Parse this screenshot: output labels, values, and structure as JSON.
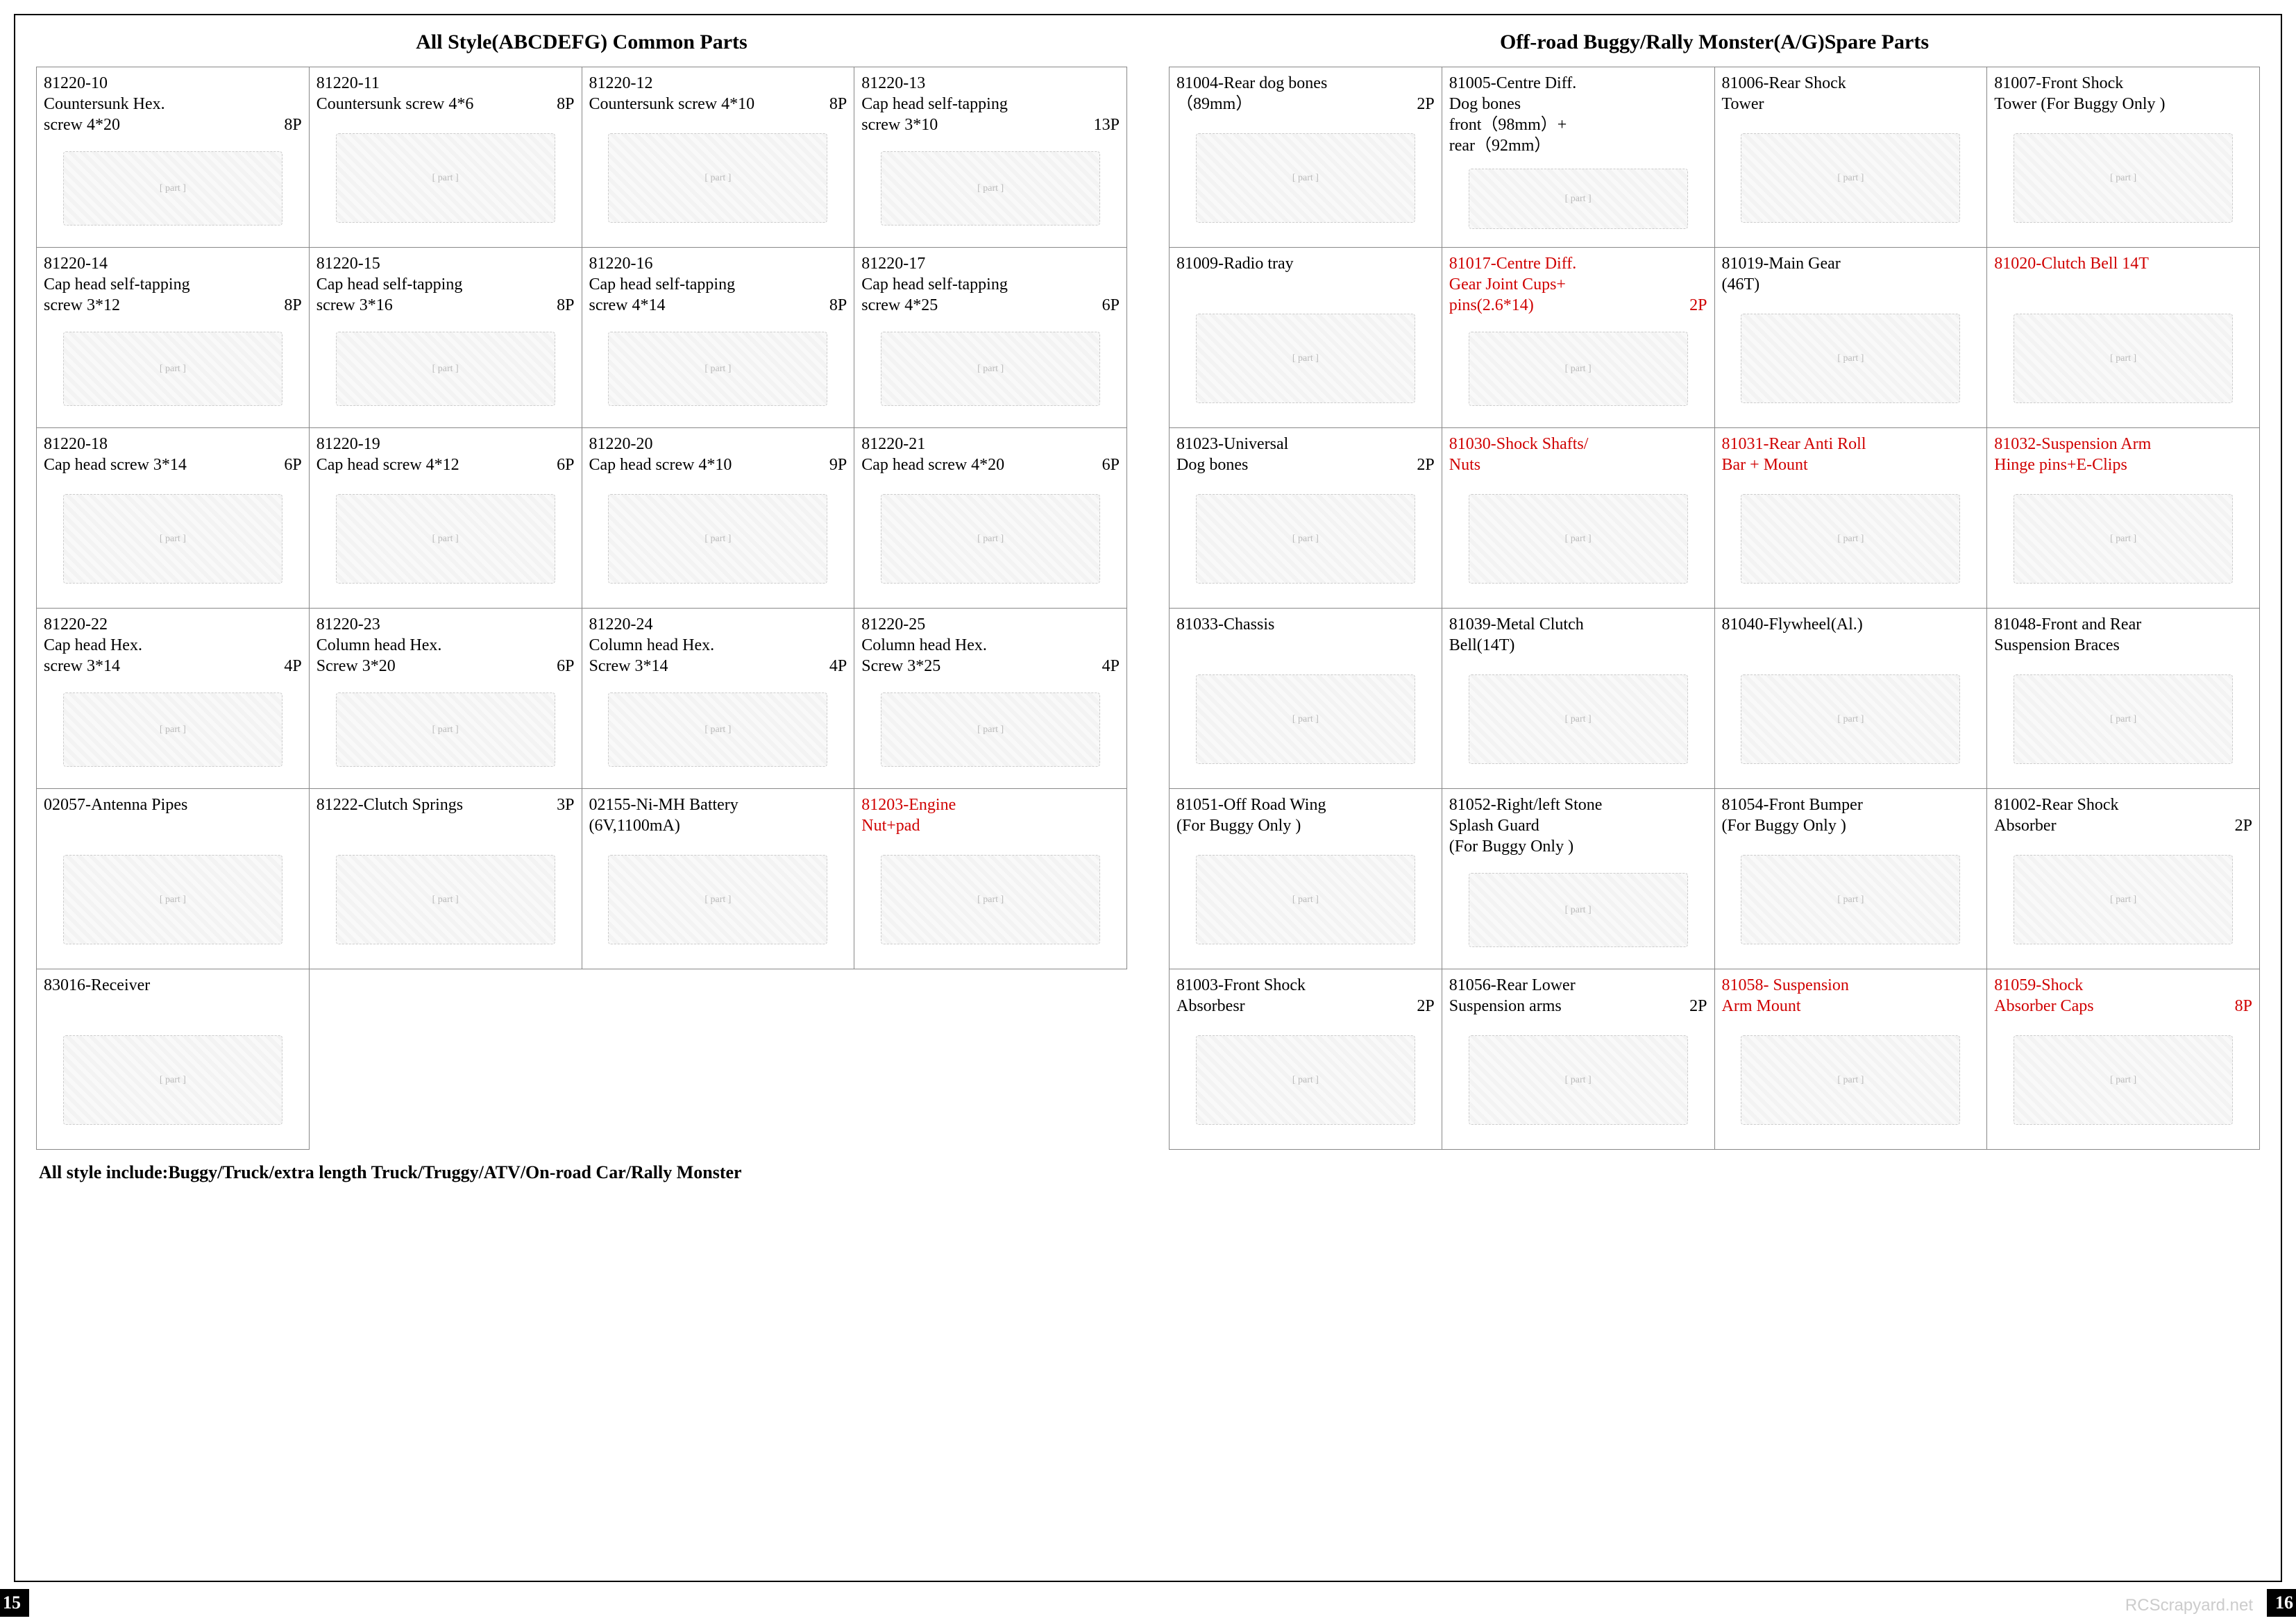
{
  "left": {
    "title": "All Style(ABCDEFG)  Common Parts",
    "footer": "All style include:Buggy/Truck/extra length Truck/Truggy/ATV/On-road Car/Rally Monster",
    "pagenum": "15",
    "cells": [
      {
        "l1": "81220-10",
        "l2": "Countersunk Hex.",
        "l3": "screw 4*20",
        "qty": "8P"
      },
      {
        "l1": "81220-11",
        "l2": "Countersunk screw 4*6",
        "qty": "8P"
      },
      {
        "l1": "81220-12",
        "l2": "Countersunk screw 4*10",
        "qty": "8P"
      },
      {
        "l1": "81220-13",
        "l2": "Cap head self-tapping",
        "l3": "screw 3*10",
        "qty": "13P"
      },
      {
        "l1": "81220-14",
        "l2": "Cap head self-tapping",
        "l3": "screw  3*12",
        "qty": "8P"
      },
      {
        "l1": "81220-15",
        "l2": "Cap head self-tapping",
        "l3": "screw  3*16",
        "qty": "8P"
      },
      {
        "l1": "81220-16",
        "l2": "Cap head self-tapping",
        "l3": "screw 4*14",
        "qty": "8P"
      },
      {
        "l1": "81220-17",
        "l2": "Cap head self-tapping",
        "l3": "screw 4*25",
        "qty": "6P"
      },
      {
        "l1": "81220-18",
        "l2": "Cap head screw 3*14",
        "qty": "6P"
      },
      {
        "l1": "81220-19",
        "l2": "Cap head screw 4*12",
        "qty": "6P"
      },
      {
        "l1": "81220-20",
        "l2": "Cap head screw 4*10",
        "qty": "9P"
      },
      {
        "l1": "81220-21",
        "l2": "Cap head screw 4*20",
        "qty": "6P"
      },
      {
        "l1": "81220-22",
        "l2": "Cap head Hex.",
        "l3": "screw 3*14",
        "qty": "4P"
      },
      {
        "l1": "81220-23",
        "l2": "Column head Hex.",
        "l3": "Screw 3*20",
        "qty": "6P"
      },
      {
        "l1": "81220-24",
        "l2": "Column head Hex.",
        "l3": "Screw 3*14",
        "qty": "4P"
      },
      {
        "l1": "81220-25",
        "l2": "Column head Hex.",
        "l3": "Screw 3*25",
        "qty": "4P"
      },
      {
        "l1": "02057-Antenna Pipes"
      },
      {
        "l1": "81222-Clutch Springs",
        "qty": "3P"
      },
      {
        "l1": "02155-Ni-MH Battery",
        "l2": "(6V,1100mA)"
      },
      {
        "l1": "81203-Engine",
        "l2": "Nut+pad",
        "red": true
      },
      {
        "l1": "83016-Receiver",
        "wide": true
      }
    ]
  },
  "right": {
    "title": "Off-road  Buggy/Rally  Monster(A/G)Spare Parts",
    "pagenum": "16",
    "watermark": "RCScrapyard.net",
    "cells": [
      {
        "l1": "81004-Rear dog bones",
        "l2": "（89mm）",
        "qty": "2P"
      },
      {
        "l1": "81005-Centre Diff.",
        "l2": "Dog bones",
        "l3": "front（98mm）+",
        "l4": "rear（92mm）"
      },
      {
        "l1": "81006-Rear Shock",
        "l2": "Tower"
      },
      {
        "l1": "81007-Front Shock",
        "l2": "Tower  (For Buggy Only )"
      },
      {
        "l1": "81009-Radio tray"
      },
      {
        "l1": "81017-Centre Diff.",
        "l2": "Gear Joint Cups+",
        "l3": "pins(2.6*14)",
        "qty": "2P",
        "red": true
      },
      {
        "l1": "81019-Main Gear",
        "l2": "(46T)"
      },
      {
        "l1": "81020-Clutch Bell  14T",
        "red": true
      },
      {
        "l1": "81023-Universal",
        "l2": "Dog bones",
        "qty": "2P"
      },
      {
        "l1": "81030-Shock Shafts/",
        "l2": "Nuts",
        "red": true
      },
      {
        "l1": "81031-Rear Anti Roll",
        "l2": "Bar + Mount",
        "red": true
      },
      {
        "l1": "81032-Suspension Arm",
        "l2": "Hinge pins+E-Clips",
        "red": true
      },
      {
        "l1": "81033-Chassis"
      },
      {
        "l1": "81039-Metal Clutch",
        "l2": "Bell(14T)"
      },
      {
        "l1": "81040-Flywheel(Al.)"
      },
      {
        "l1": "81048-Front and Rear",
        "l2": "Suspension Braces"
      },
      {
        "l1": "81051-Off Road Wing",
        "l2": "(For Buggy Only )"
      },
      {
        "l1": "81052-Right/left Stone",
        "l2": "Splash Guard",
        "l3": "(For Buggy Only )"
      },
      {
        "l1": "81054-Front Bumper",
        "l2": "(For Buggy Only )"
      },
      {
        "l1": "81002-Rear Shock",
        "l2": "Absorber",
        "qty": "2P"
      },
      {
        "l1": "81003-Front Shock",
        "l2": "Absorbesr",
        "qty": "2P"
      },
      {
        "l1": "81056-Rear Lower",
        "l2": "Suspension arms",
        "qty": "2P"
      },
      {
        "l1": "81058- Suspension",
        "l2": "Arm Mount",
        "red": true
      },
      {
        "l1": "81059-Shock",
        "l2": "Absorber  Caps",
        "qty": "8P",
        "red": true
      }
    ]
  }
}
